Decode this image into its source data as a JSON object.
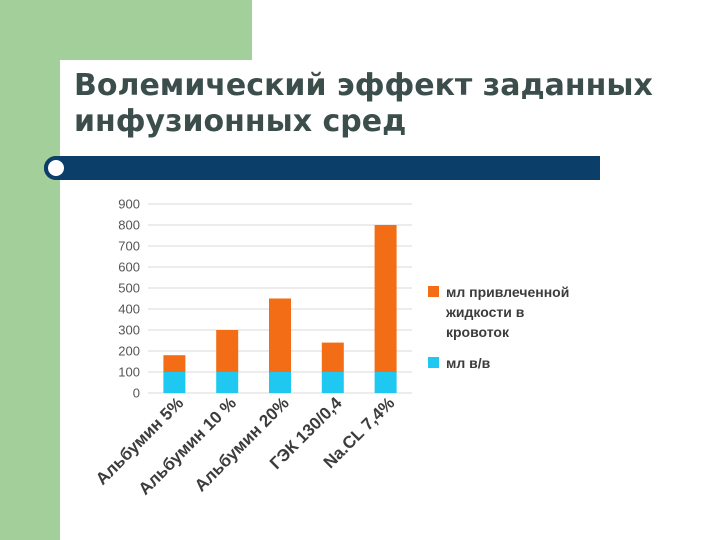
{
  "slide": {
    "title": "Волемический эффект заданных инфузионных сред"
  },
  "chart_data": {
    "type": "bar",
    "stacked": true,
    "categories": [
      "Альбумин 5%",
      "Альбумин 10 %",
      "Альбумин 20%",
      "ГЭК 130/0,4",
      "Na.CL 7,4%"
    ],
    "y_ticks": [
      "900",
      "800",
      "700",
      "600",
      "500",
      "400",
      "300",
      "200",
      "100",
      "0"
    ],
    "ylim": [
      0,
      900
    ],
    "grid": true,
    "legend_position": "right",
    "series": [
      {
        "name": "мл в/в",
        "legend_lines": [
          "мл  в/в"
        ],
        "color": "#1ec8f0",
        "values": [
          100,
          100,
          100,
          100,
          100
        ]
      },
      {
        "name": "мл привлеченной жидкости в кровоток",
        "legend_lines": [
          "мл привлеченной",
          "жидкости в",
          "кровоток"
        ],
        "color": "#f26d16",
        "values": [
          80,
          200,
          350,
          140,
          700
        ]
      }
    ]
  }
}
